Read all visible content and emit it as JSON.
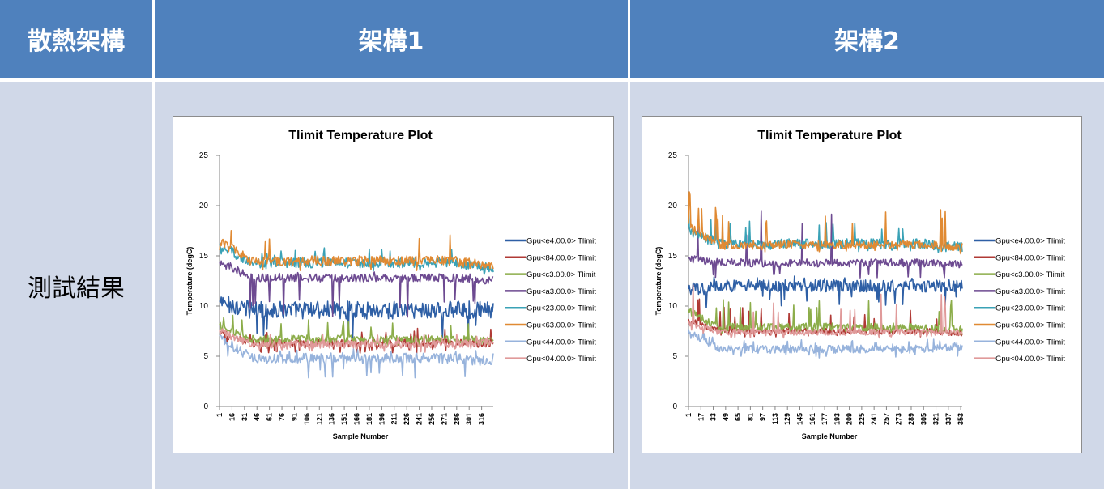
{
  "table": {
    "header": {
      "col0": "散熱架構",
      "col1": "架構1",
      "col2": "架構2"
    },
    "row_label": "測試結果"
  },
  "colors": {
    "header_bg": "#4f81bd",
    "body_bg": "#d0d8e8"
  },
  "chart_data": [
    {
      "type": "line",
      "title": "Tlimit Temperature Plot",
      "xlabel": "Sample Number",
      "ylabel": "Temperature (degC)",
      "ylim": [
        0,
        25
      ],
      "yticks": [
        0,
        5,
        10,
        15,
        20,
        25
      ],
      "x_start": 1,
      "x_step": 15,
      "num_samples": 330,
      "xtick_labels": [
        "1",
        "16",
        "31",
        "46",
        "61",
        "76",
        "91",
        "106",
        "121",
        "136",
        "151",
        "166",
        "181",
        "196",
        "211",
        "226",
        "241",
        "256",
        "271",
        "286",
        "301",
        "316"
      ],
      "legend_position": "right",
      "series": [
        {
          "name": "Gpu<e4.00.0> Tlimit",
          "color": "#2e5fa5",
          "mean": 9.6,
          "noise": 0.9,
          "spike_up": 0.8,
          "spike_down": 3.0,
          "start": 10.3,
          "end": 9.6
        },
        {
          "name": "Gpu<84.00.0> Tlimit",
          "color": "#b03a35",
          "mean": 6.3,
          "noise": 0.4,
          "spike_up": 1.5,
          "spike_down": 1.0,
          "start": 7.3,
          "end": 6.3
        },
        {
          "name": "Gpu<c3.00.0> Tlimit",
          "color": "#8cad4a",
          "mean": 6.7,
          "noise": 0.4,
          "spike_up": 2.0,
          "spike_down": 0.8,
          "start": 8.0,
          "end": 6.5
        },
        {
          "name": "Gpu<a3.00.0> Tlimit",
          "color": "#6d4a91",
          "mean": 12.8,
          "noise": 0.4,
          "spike_up": 0.6,
          "spike_down": 4.0,
          "start": 14.3,
          "end": 12.5
        },
        {
          "name": "Gpu<23.00.0> Tlimit",
          "color": "#3aa2b6",
          "mean": 14.3,
          "noise": 0.5,
          "spike_up": 1.5,
          "spike_down": 0.8,
          "start": 16.0,
          "end": 13.8
        },
        {
          "name": "Gpu<63.00.0> Tlimit",
          "color": "#e08a33",
          "mean": 14.5,
          "noise": 0.5,
          "spike_up": 3.0,
          "spike_down": 1.0,
          "start": 16.4,
          "end": 13.9
        },
        {
          "name": "Gpu<44.00.0> Tlimit",
          "color": "#97b3dc",
          "mean": 4.8,
          "noise": 0.5,
          "spike_up": 1.0,
          "spike_down": 2.0,
          "start": 6.8,
          "end": 4.4
        },
        {
          "name": "Gpu<04.00.0> Tlimit",
          "color": "#e09a9a",
          "mean": 6.2,
          "noise": 0.4,
          "spike_up": 1.0,
          "spike_down": 0.8,
          "start": 7.5,
          "end": 6.4
        }
      ]
    },
    {
      "type": "line",
      "title": "Tlimit Temperature Plot",
      "xlabel": "Sample Number",
      "ylabel": "Temperature (degC)",
      "ylim": [
        0,
        25
      ],
      "yticks": [
        0,
        5,
        10,
        15,
        20,
        25
      ],
      "x_start": 1,
      "x_step": 16,
      "num_samples": 355,
      "xtick_labels": [
        "1",
        "17",
        "33",
        "49",
        "65",
        "81",
        "97",
        "113",
        "129",
        "145",
        "161",
        "177",
        "193",
        "209",
        "225",
        "241",
        "257",
        "273",
        "289",
        "305",
        "321",
        "337",
        "353"
      ],
      "legend_position": "right",
      "series": [
        {
          "name": "Gpu<e4.00.0> Tlimit",
          "color": "#2e5fa5",
          "mean": 12.0,
          "noise": 0.6,
          "spike_up": 1.0,
          "spike_down": 2.0,
          "start": 11.5,
          "end": 12.0
        },
        {
          "name": "Gpu<84.00.0> Tlimit",
          "color": "#b03a35",
          "mean": 7.5,
          "noise": 0.3,
          "spike_up": 2.5,
          "spike_down": 0.6,
          "start": 8.6,
          "end": 7.3
        },
        {
          "name": "Gpu<c3.00.0> Tlimit",
          "color": "#8cad4a",
          "mean": 7.9,
          "noise": 0.4,
          "spike_up": 3.0,
          "spike_down": 0.6,
          "start": 9.5,
          "end": 7.7
        },
        {
          "name": "Gpu<a3.00.0> Tlimit",
          "color": "#6d4a91",
          "mean": 14.3,
          "noise": 0.4,
          "spike_up": 5.5,
          "spike_down": 1.5,
          "start": 14.7,
          "end": 14.2
        },
        {
          "name": "Gpu<23.00.0> Tlimit",
          "color": "#3aa2b6",
          "mean": 16.2,
          "noise": 0.5,
          "spike_up": 2.5,
          "spike_down": 0.8,
          "start": 17.5,
          "end": 15.9
        },
        {
          "name": "Gpu<63.00.0> Tlimit",
          "color": "#e08a33",
          "mean": 16.1,
          "noise": 0.4,
          "spike_up": 3.8,
          "spike_down": 0.8,
          "start": 18.0,
          "end": 15.9
        },
        {
          "name": "Gpu<44.00.0> Tlimit",
          "color": "#97b3dc",
          "mean": 5.7,
          "noise": 0.4,
          "spike_up": 1.0,
          "spike_down": 1.0,
          "start": 7.5,
          "end": 6.0
        },
        {
          "name": "Gpu<04.00.0> Tlimit",
          "color": "#e09a9a",
          "mean": 7.4,
          "noise": 0.3,
          "spike_up": 4.0,
          "spike_down": 0.6,
          "start": 8.3,
          "end": 7.3
        }
      ]
    }
  ]
}
